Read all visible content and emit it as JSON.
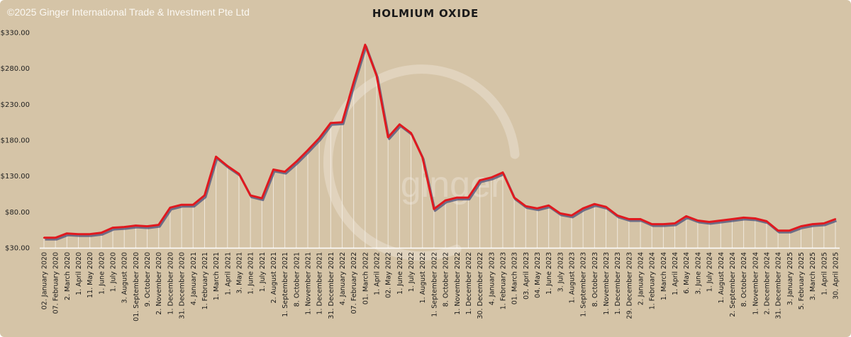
{
  "copyright": "©2025 Ginger International Trade & Investment Pte Ltd",
  "watermark": "ginger",
  "colors": {
    "background": "#d5c4a7",
    "line": "#e0191f",
    "shadow": "#4a4f7a",
    "droplines": "#f4efe6"
  },
  "chart_data": {
    "type": "line",
    "title": "HOLMIUM OXIDE",
    "xlabel": "",
    "ylabel": "",
    "ylim": [
      30,
      330
    ],
    "y_ticks": [
      "$30.00",
      "$80.00",
      "$130.00",
      "$180.00",
      "$230.00",
      "$280.00",
      "$330.00"
    ],
    "grid": false,
    "legend": "none",
    "x_tick_labels": [
      "02. January 2020",
      "07. February 2020",
      "2. March 2020",
      "1. April 2020",
      "11. May 2020",
      "1. June 2020",
      "1. July 2020",
      "3. August 2020",
      "01. September 2020",
      "9. October 2020",
      "2. November 2020",
      "1. December 2020",
      "31. December 2020",
      "4. January 2021",
      "1. February 2021",
      "1. March 2021",
      "1. April 2021",
      "3. May 2021",
      "1. June 2021",
      "1. July 2021",
      "2. August 2021",
      "1. September 2021",
      "8. October 2021",
      "1. November 2021",
      "1. December 2021",
      "31. December 2021",
      "4. January 2022",
      "07. February 2022",
      "01. March 2022",
      "1. April 2022",
      "02. May 2022",
      "1. June 2022",
      "1. July 2022",
      "1. August 2022",
      "1. September 2022",
      "8. October 2022",
      "1. November 2022",
      "1. December 2022",
      "30. December 2022",
      "4. January 2023",
      "1. February 2023",
      "01. March 2023",
      "03. April 2023",
      "04. May 2023",
      "1. June 2023",
      "3. July 2023",
      "1. August 2023",
      "1. September 2023",
      "8. October 2023",
      "1. November 2023",
      "1. December 2023",
      "29. December 2023",
      "2. January 2024",
      "1. February 2024",
      "1. March 2024",
      "1. April 2024",
      "6. May 2024",
      "3. June 2024",
      "1. July 2024",
      "1. August 2024",
      "2. September 2024",
      "8. October 2024",
      "1. November 2024",
      "2. December 2024",
      "31. December 2024",
      "3. January 2025",
      "5. February 2025",
      "3. March 2025",
      "1. April 2025",
      "30. April 2025"
    ],
    "series": [
      {
        "values": [
          44,
          44,
          50,
          49,
          49,
          51,
          58,
          59,
          61,
          60,
          62,
          86,
          90,
          90,
          103,
          157,
          144,
          133,
          103,
          99,
          139,
          136,
          150,
          166,
          183,
          204,
          205,
          261,
          313,
          270,
          184,
          202,
          190,
          156,
          84,
          96,
          100,
          100,
          124,
          128,
          135,
          100,
          88,
          85,
          89,
          78,
          75,
          85,
          91,
          87,
          75,
          70,
          70,
          63,
          63,
          64,
          74,
          68,
          66,
          68,
          70,
          72,
          71,
          67,
          54,
          54,
          60,
          63,
          64,
          70
        ]
      }
    ]
  }
}
